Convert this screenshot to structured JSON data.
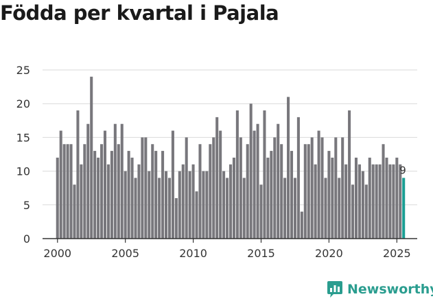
{
  "title": "Födda per kvartal i Pajala",
  "brand": {
    "name": "Newsworthy",
    "icon": "newsworthy-logo-icon",
    "color": "#2a9d8f"
  },
  "colors": {
    "bar": "#78777c",
    "highlight": "#1a9e93",
    "grid": "#d9d9d9",
    "axis": "#333333",
    "text": "#333333"
  },
  "chart_data": {
    "type": "bar",
    "title": "Födda per kvartal i Pajala",
    "xlabel": "",
    "ylabel": "",
    "x_start": 2000.0,
    "x_step": 0.25,
    "x_range": [
      1998.9,
      2026.5
    ],
    "xticks": [
      2000,
      2005,
      2010,
      2015,
      2020,
      2025
    ],
    "ylim": [
      0,
      25
    ],
    "yticks": [
      0,
      5,
      10,
      15,
      20,
      25
    ],
    "grid": true,
    "legend": "none",
    "values": [
      12,
      16,
      14,
      14,
      14,
      8,
      19,
      11,
      14,
      17,
      24,
      13,
      12,
      14,
      16,
      11,
      13,
      17,
      14,
      17,
      10,
      13,
      12,
      9,
      11,
      15,
      15,
      10,
      14,
      13,
      9,
      13,
      10,
      9,
      16,
      6,
      10,
      11,
      15,
      10,
      11,
      7,
      14,
      10,
      10,
      14,
      15,
      18,
      16,
      10,
      9,
      11,
      12,
      19,
      15,
      9,
      14,
      20,
      16,
      17,
      8,
      19,
      12,
      13,
      15,
      17,
      14,
      9,
      21,
      13,
      9,
      18,
      4,
      14,
      14,
      15,
      11,
      16,
      15,
      9,
      13,
      12,
      15,
      9,
      15,
      11,
      19,
      8,
      12,
      11,
      10,
      8,
      12,
      11,
      11,
      11,
      14,
      12,
      11,
      11,
      12,
      11,
      9
    ],
    "highlight": {
      "index": 102,
      "label": "9"
    }
  }
}
